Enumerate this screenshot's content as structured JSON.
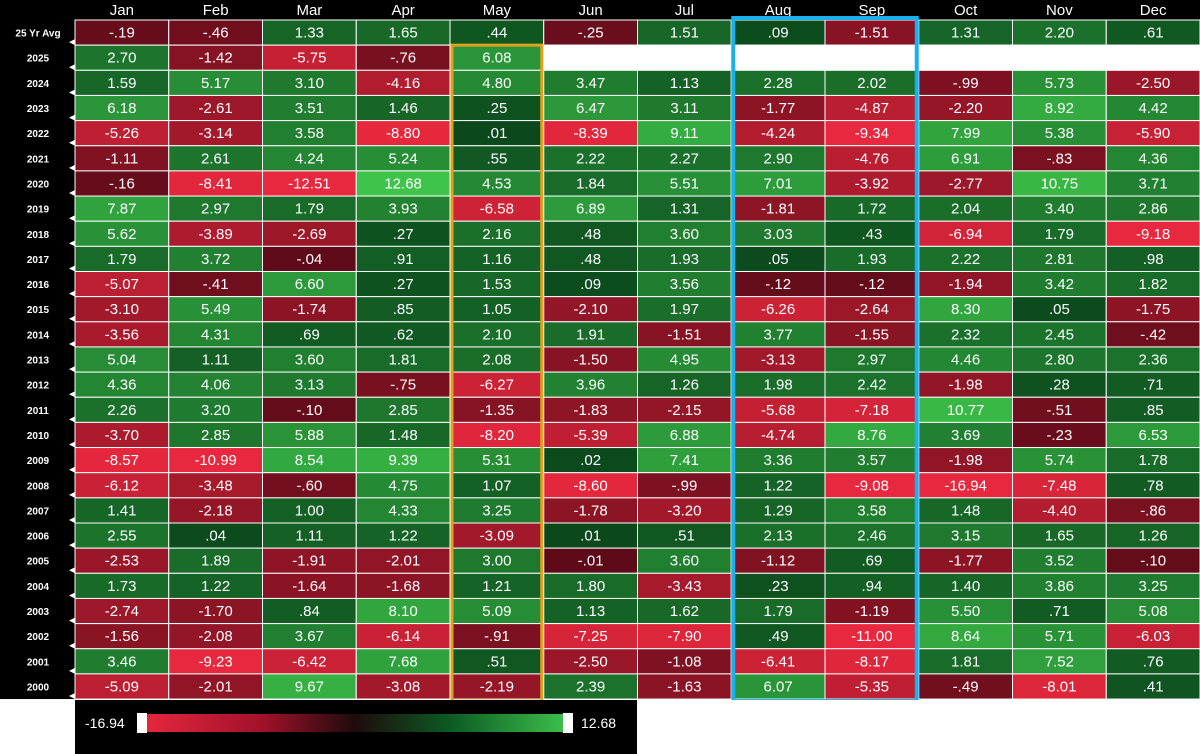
{
  "chart_data": {
    "type": "heatmap",
    "columns": [
      "Jan",
      "Feb",
      "Mar",
      "Apr",
      "May",
      "Jun",
      "Jul",
      "Aug",
      "Sep",
      "Oct",
      "Nov",
      "Dec"
    ],
    "rows": [
      {
        "label": "25 Yr Avg",
        "values": [
          -0.19,
          -0.46,
          1.33,
          1.65,
          0.44,
          -0.25,
          1.51,
          0.09,
          -1.51,
          1.31,
          2.2,
          0.61
        ],
        "text": [
          "-.19",
          "-.46",
          "1.33",
          "1.65",
          ".44",
          "-.25",
          "1.51",
          ".09",
          "-1.51",
          "1.31",
          "2.20",
          ".61"
        ]
      },
      {
        "label": "2025",
        "values": [
          2.7,
          -1.42,
          -5.75,
          -0.76,
          6.08,
          null,
          null,
          null,
          null,
          null,
          null,
          null
        ],
        "text": [
          "2.70",
          "-1.42",
          "-5.75",
          "-.76",
          "6.08",
          "",
          "",
          "",
          "",
          "",
          "",
          ""
        ]
      },
      {
        "label": "2024",
        "values": [
          1.59,
          5.17,
          3.1,
          -4.16,
          4.8,
          3.47,
          1.13,
          2.28,
          2.02,
          -0.99,
          5.73,
          -2.5
        ],
        "text": [
          "1.59",
          "5.17",
          "3.10",
          "-4.16",
          "4.80",
          "3.47",
          "1.13",
          "2.28",
          "2.02",
          "-.99",
          "5.73",
          "-2.50"
        ]
      },
      {
        "label": "2023",
        "values": [
          6.18,
          -2.61,
          3.51,
          1.46,
          0.25,
          6.47,
          3.11,
          -1.77,
          -4.87,
          -2.2,
          8.92,
          4.42
        ],
        "text": [
          "6.18",
          "-2.61",
          "3.51",
          "1.46",
          ".25",
          "6.47",
          "3.11",
          "-1.77",
          "-4.87",
          "-2.20",
          "8.92",
          "4.42"
        ]
      },
      {
        "label": "2022",
        "values": [
          -5.26,
          -3.14,
          3.58,
          -8.8,
          0.01,
          -8.39,
          9.11,
          -4.24,
          -9.34,
          7.99,
          5.38,
          -5.9
        ],
        "text": [
          "-5.26",
          "-3.14",
          "3.58",
          "-8.80",
          ".01",
          "-8.39",
          "9.11",
          "-4.24",
          "-9.34",
          "7.99",
          "5.38",
          "-5.90"
        ]
      },
      {
        "label": "2021",
        "values": [
          -1.11,
          2.61,
          4.24,
          5.24,
          0.55,
          2.22,
          2.27,
          2.9,
          -4.76,
          6.91,
          -0.83,
          4.36
        ],
        "text": [
          "-1.11",
          "2.61",
          "4.24",
          "5.24",
          ".55",
          "2.22",
          "2.27",
          "2.90",
          "-4.76",
          "6.91",
          "-.83",
          "4.36"
        ]
      },
      {
        "label": "2020",
        "values": [
          -0.16,
          -8.41,
          -12.51,
          12.68,
          4.53,
          1.84,
          5.51,
          7.01,
          -3.92,
          -2.77,
          10.75,
          3.71
        ],
        "text": [
          "-.16",
          "-8.41",
          "-12.51",
          "12.68",
          "4.53",
          "1.84",
          "5.51",
          "7.01",
          "-3.92",
          "-2.77",
          "10.75",
          "3.71"
        ]
      },
      {
        "label": "2019",
        "values": [
          7.87,
          2.97,
          1.79,
          3.93,
          -6.58,
          6.89,
          1.31,
          -1.81,
          1.72,
          2.04,
          3.4,
          2.86
        ],
        "text": [
          "7.87",
          "2.97",
          "1.79",
          "3.93",
          "-6.58",
          "6.89",
          "1.31",
          "-1.81",
          "1.72",
          "2.04",
          "3.40",
          "2.86"
        ]
      },
      {
        "label": "2018",
        "values": [
          5.62,
          -3.89,
          -2.69,
          0.27,
          2.16,
          0.48,
          3.6,
          3.03,
          0.43,
          -6.94,
          1.79,
          -9.18
        ],
        "text": [
          "5.62",
          "-3.89",
          "-2.69",
          ".27",
          "2.16",
          ".48",
          "3.60",
          "3.03",
          ".43",
          "-6.94",
          "1.79",
          "-9.18"
        ]
      },
      {
        "label": "2017",
        "values": [
          1.79,
          3.72,
          -0.04,
          0.91,
          1.16,
          0.48,
          1.93,
          0.05,
          1.93,
          2.22,
          2.81,
          0.98
        ],
        "text": [
          "1.79",
          "3.72",
          "-.04",
          ".91",
          "1.16",
          ".48",
          "1.93",
          ".05",
          "1.93",
          "2.22",
          "2.81",
          ".98"
        ]
      },
      {
        "label": "2016",
        "values": [
          -5.07,
          -0.41,
          6.6,
          0.27,
          1.53,
          0.09,
          3.56,
          -0.12,
          -0.12,
          -1.94,
          3.42,
          1.82
        ],
        "text": [
          "-5.07",
          "-.41",
          "6.60",
          ".27",
          "1.53",
          ".09",
          "3.56",
          "-.12",
          "-.12",
          "-1.94",
          "3.42",
          "1.82"
        ]
      },
      {
        "label": "2015",
        "values": [
          -3.1,
          5.49,
          -1.74,
          0.85,
          1.05,
          -2.1,
          1.97,
          -6.26,
          -2.64,
          8.3,
          0.05,
          -1.75
        ],
        "text": [
          "-3.10",
          "5.49",
          "-1.74",
          ".85",
          "1.05",
          "-2.10",
          "1.97",
          "-6.26",
          "-2.64",
          "8.30",
          ".05",
          "-1.75"
        ]
      },
      {
        "label": "2014",
        "values": [
          -3.56,
          4.31,
          0.69,
          0.62,
          2.1,
          1.91,
          -1.51,
          3.77,
          -1.55,
          2.32,
          2.45,
          -0.42
        ],
        "text": [
          "-3.56",
          "4.31",
          ".69",
          ".62",
          "2.10",
          "1.91",
          "-1.51",
          "3.77",
          "-1.55",
          "2.32",
          "2.45",
          "-.42"
        ]
      },
      {
        "label": "2013",
        "values": [
          5.04,
          1.11,
          3.6,
          1.81,
          2.08,
          -1.5,
          4.95,
          -3.13,
          2.97,
          4.46,
          2.8,
          2.36
        ],
        "text": [
          "5.04",
          "1.11",
          "3.60",
          "1.81",
          "2.08",
          "-1.50",
          "4.95",
          "-3.13",
          "2.97",
          "4.46",
          "2.80",
          "2.36"
        ]
      },
      {
        "label": "2012",
        "values": [
          4.36,
          4.06,
          3.13,
          -0.75,
          -6.27,
          3.96,
          1.26,
          1.98,
          2.42,
          -1.98,
          0.28,
          0.71
        ],
        "text": [
          "4.36",
          "4.06",
          "3.13",
          "-.75",
          "-6.27",
          "3.96",
          "1.26",
          "1.98",
          "2.42",
          "-1.98",
          ".28",
          ".71"
        ]
      },
      {
        "label": "2011",
        "values": [
          2.26,
          3.2,
          -0.1,
          2.85,
          -1.35,
          -1.83,
          -2.15,
          -5.68,
          -7.18,
          10.77,
          -0.51,
          0.85
        ],
        "text": [
          "2.26",
          "3.20",
          "-.10",
          "2.85",
          "-1.35",
          "-1.83",
          "-2.15",
          "-5.68",
          "-7.18",
          "10.77",
          "-.51",
          ".85"
        ]
      },
      {
        "label": "2010",
        "values": [
          -3.7,
          2.85,
          5.88,
          1.48,
          -8.2,
          -5.39,
          6.88,
          -4.74,
          8.76,
          3.69,
          -0.23,
          6.53
        ],
        "text": [
          "-3.70",
          "2.85",
          "5.88",
          "1.48",
          "-8.20",
          "-5.39",
          "6.88",
          "-4.74",
          "8.76",
          "3.69",
          "-.23",
          "6.53"
        ]
      },
      {
        "label": "2009",
        "values": [
          -8.57,
          -10.99,
          8.54,
          9.39,
          5.31,
          0.02,
          7.41,
          3.36,
          3.57,
          -1.98,
          5.74,
          1.78
        ],
        "text": [
          "-8.57",
          "-10.99",
          "8.54",
          "9.39",
          "5.31",
          ".02",
          "7.41",
          "3.36",
          "3.57",
          "-1.98",
          "5.74",
          "1.78"
        ]
      },
      {
        "label": "2008",
        "values": [
          -6.12,
          -3.48,
          -0.6,
          4.75,
          1.07,
          -8.6,
          -0.99,
          1.22,
          -9.08,
          -16.94,
          -7.48,
          0.78
        ],
        "text": [
          "-6.12",
          "-3.48",
          "-.60",
          "4.75",
          "1.07",
          "-8.60",
          "-.99",
          "1.22",
          "-9.08",
          "-16.94",
          "-7.48",
          ".78"
        ]
      },
      {
        "label": "2007",
        "values": [
          1.41,
          -2.18,
          1.0,
          4.33,
          3.25,
          -1.78,
          -3.2,
          1.29,
          3.58,
          1.48,
          -4.4,
          -0.86
        ],
        "text": [
          "1.41",
          "-2.18",
          "1.00",
          "4.33",
          "3.25",
          "-1.78",
          "-3.20",
          "1.29",
          "3.58",
          "1.48",
          "-4.40",
          "-.86"
        ]
      },
      {
        "label": "2006",
        "values": [
          2.55,
          0.04,
          1.11,
          1.22,
          -3.09,
          0.01,
          0.51,
          2.13,
          2.46,
          3.15,
          1.65,
          1.26
        ],
        "text": [
          "2.55",
          ".04",
          "1.11",
          "1.22",
          "-3.09",
          ".01",
          ".51",
          "2.13",
          "2.46",
          "3.15",
          "1.65",
          "1.26"
        ]
      },
      {
        "label": "2005",
        "values": [
          -2.53,
          1.89,
          -1.91,
          -2.01,
          3.0,
          -0.01,
          3.6,
          -1.12,
          0.69,
          -1.77,
          3.52,
          -0.1
        ],
        "text": [
          "-2.53",
          "1.89",
          "-1.91",
          "-2.01",
          "3.00",
          "-.01",
          "3.60",
          "-1.12",
          ".69",
          "-1.77",
          "3.52",
          "-.10"
        ]
      },
      {
        "label": "2004",
        "values": [
          1.73,
          1.22,
          -1.64,
          -1.68,
          1.21,
          1.8,
          -3.43,
          0.23,
          0.94,
          1.4,
          3.86,
          3.25
        ],
        "text": [
          "1.73",
          "1.22",
          "-1.64",
          "-1.68",
          "1.21",
          "1.80",
          "-3.43",
          ".23",
          ".94",
          "1.40",
          "3.86",
          "3.25"
        ]
      },
      {
        "label": "2003",
        "values": [
          -2.74,
          -1.7,
          0.84,
          8.1,
          5.09,
          1.13,
          1.62,
          1.79,
          -1.19,
          5.5,
          0.71,
          5.08
        ],
        "text": [
          "-2.74",
          "-1.70",
          ".84",
          "8.10",
          "5.09",
          "1.13",
          "1.62",
          "1.79",
          "-1.19",
          "5.50",
          ".71",
          "5.08"
        ]
      },
      {
        "label": "2002",
        "values": [
          -1.56,
          -2.08,
          3.67,
          -6.14,
          -0.91,
          -7.25,
          -7.9,
          0.49,
          -11.0,
          8.64,
          5.71,
          -6.03
        ],
        "text": [
          "-1.56",
          "-2.08",
          "3.67",
          "-6.14",
          "-.91",
          "-7.25",
          "-7.90",
          ".49",
          "-11.00",
          "8.64",
          "5.71",
          "-6.03"
        ]
      },
      {
        "label": "2001",
        "values": [
          3.46,
          -9.23,
          -6.42,
          7.68,
          0.51,
          -2.5,
          -1.08,
          -6.41,
          -8.17,
          1.81,
          7.52,
          0.76
        ],
        "text": [
          "3.46",
          "-9.23",
          "-6.42",
          "7.68",
          ".51",
          "-2.50",
          "-1.08",
          "-6.41",
          "-8.17",
          "1.81",
          "7.52",
          ".76"
        ]
      },
      {
        "label": "2000",
        "values": [
          -5.09,
          -2.01,
          9.67,
          -3.08,
          -2.19,
          2.39,
          -1.63,
          6.07,
          -5.35,
          -0.49,
          -8.01,
          0.41
        ],
        "text": [
          "-5.09",
          "-2.01",
          "9.67",
          "-3.08",
          "-2.19",
          "2.39",
          "-1.63",
          "6.07",
          "-5.35",
          "-.49",
          "-8.01",
          ".41"
        ]
      }
    ],
    "scale": {
      "min": -16.94,
      "max": 12.68,
      "min_label": "-16.94",
      "max_label": "12.68"
    },
    "highlights": [
      {
        "columns": [
          "May"
        ],
        "color": "#e0a020"
      },
      {
        "columns": [
          "Aug",
          "Sep"
        ],
        "color": "#1ab0f0"
      }
    ]
  },
  "colors": {
    "background": "#000000",
    "grid": "#ffffff",
    "text": "#ffffff",
    "empty_cell": "#ffffff"
  }
}
